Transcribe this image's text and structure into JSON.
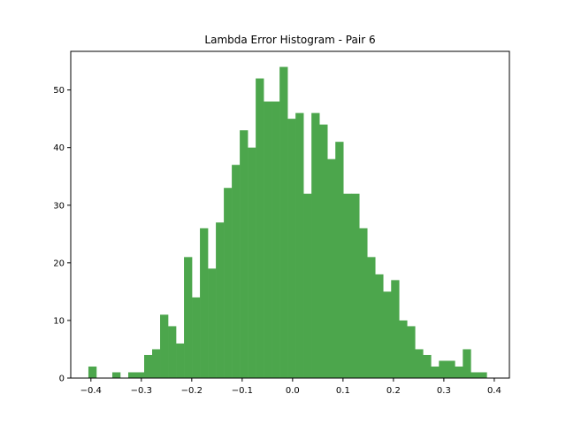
{
  "chart_data": {
    "type": "bar",
    "title": "Lambda Error Histogram - Pair 6",
    "xlabel": "",
    "ylabel": "",
    "bar_color": "#4ca64c",
    "xlim": [
      -0.44,
      0.43
    ],
    "ylim": [
      0,
      56.7
    ],
    "x_ticks": [
      -0.4,
      -0.3,
      -0.2,
      -0.1,
      0.0,
      0.1,
      0.2,
      0.3,
      0.4
    ],
    "x_tick_labels": [
      "−0.4",
      "−0.3",
      "−0.2",
      "−0.1",
      "0.0",
      "0.1",
      "0.2",
      "0.3",
      "0.4"
    ],
    "y_ticks": [
      0,
      10,
      20,
      30,
      40,
      50
    ],
    "y_tick_labels": [
      "0",
      "10",
      "20",
      "30",
      "40",
      "50"
    ],
    "bin_start": -0.405,
    "bin_width": 0.0158,
    "values": [
      2,
      0,
      0,
      1,
      0,
      1,
      1,
      4,
      5,
      11,
      9,
      6,
      21,
      14,
      26,
      19,
      27,
      33,
      37,
      43,
      40,
      52,
      48,
      48,
      54,
      45,
      46,
      32,
      46,
      44,
      38,
      41,
      32,
      32,
      26,
      21,
      18,
      15,
      17,
      10,
      9,
      5,
      4,
      2,
      3,
      3,
      2,
      5,
      1,
      1
    ]
  }
}
